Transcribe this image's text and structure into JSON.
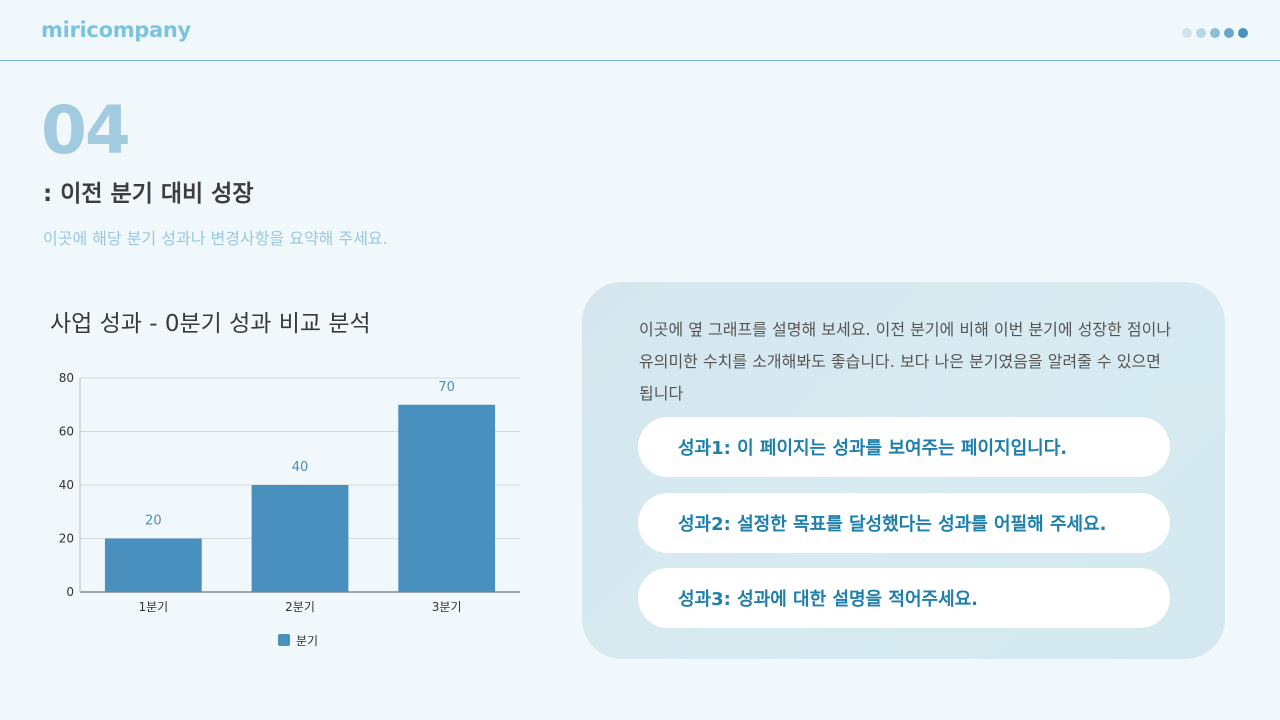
{
  "header": {
    "logo": "miricompany",
    "dot_colors": [
      "#d3e3ec",
      "#b8d5e5",
      "#8fbcd6",
      "#6aa6c9",
      "#4c92bf"
    ]
  },
  "section": {
    "number": "04",
    "title": ": 이전 분기 대비 성장",
    "subtitle": "이곳에 해당 분기 성과나 변경사항을 요약해 주세요."
  },
  "chart_title": "사업 성과 - 0분기 성과 비교 분석",
  "chart_data": {
    "type": "bar",
    "categories": [
      "1분기",
      "2분기",
      "3분기"
    ],
    "series": [
      {
        "name": "분기",
        "values": [
          20,
          40,
          70
        ]
      }
    ],
    "ylim": [
      0,
      80
    ],
    "yticks": [
      0,
      20,
      40,
      60,
      80
    ],
    "grid": true,
    "legend": "bottom",
    "bar_color": "#4a90be",
    "label_color": "#4a90be"
  },
  "panel": {
    "description": "이곳에 옆 그래프를 설명해 보세요. 이전 분기에 비해 이번 분기에 성장한 점이나 유의미한 수치를 소개해봐도 좋습니다. 보다 나은 분기였음을 알려줄 수 있으면 됩니다",
    "items": [
      "성과1: 이 페이지는 성과를 보여주는 페이지입니다.",
      "성과2: 설정한 목표를 달성했다는 성과를 어필해 주세요.",
      "성과3: 성과에 대한 설명을 적어주세요."
    ]
  }
}
